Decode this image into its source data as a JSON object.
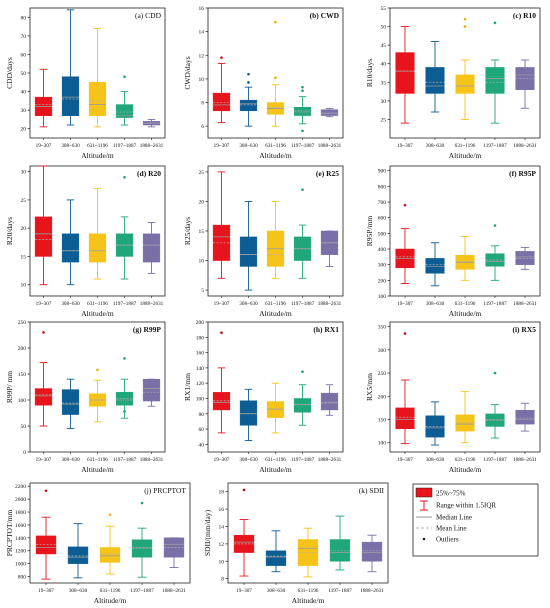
{
  "colors": {
    "box_fills": [
      "#e8141b",
      "#0b5d94",
      "#f6c319",
      "#1fa67a",
      "#7b6fa8"
    ],
    "whisker_colors": [
      "#e8141b",
      "#0b5d94",
      "#f6c319",
      "#1fa67a",
      "#7b6fa8"
    ],
    "outlier_colors": [
      "#c0101a",
      "#0b5d94",
      "#e3b10b",
      "#19a37a",
      "#6a5d9b"
    ],
    "median_line": "#9a9a9a",
    "mean_line": "#b0b0b0"
  },
  "legend": {
    "box_label": "25%~75%",
    "whisker_label": "Range within 1.5IQR",
    "median_label": "Median Line",
    "mean_label": "Mean Line",
    "outlier_label": "Outliers"
  },
  "chart_data": [
    {
      "type": "box",
      "panel_label": "(a)  CDD",
      "xlabel": "Altitude/m",
      "ylabel": "CDD/days",
      "ylim": [
        15,
        85
      ],
      "yticks": [
        20,
        30,
        40,
        50,
        60,
        70,
        80
      ],
      "categories": [
        "19~307",
        "308~630",
        "631~1196",
        "1197~1887",
        "1888~2631"
      ],
      "boxes": [
        {
          "whisker_low": 21,
          "q1": 27,
          "median": 32,
          "mean": 33,
          "q3": 37,
          "whisker_high": 52,
          "outliers": []
        },
        {
          "whisker_low": 22,
          "q1": 27,
          "median": 37,
          "mean": 36,
          "q3": 48,
          "whisker_high": 84,
          "outliers": []
        },
        {
          "whisker_low": 21,
          "q1": 27,
          "median": 33,
          "mean": 35,
          "q3": 45,
          "whisker_high": 74,
          "outliers": []
        },
        {
          "whisker_low": 22,
          "q1": 26,
          "median": 27,
          "mean": 29,
          "q3": 33,
          "whisker_high": 40,
          "outliers": [
            48
          ]
        },
        {
          "whisker_low": 21,
          "q1": 22,
          "median": 23,
          "mean": 23,
          "q3": 24,
          "whisker_high": 25,
          "outliers": []
        }
      ]
    },
    {
      "type": "box",
      "panel_label": "(b) CWD",
      "xlabel": "Altitude/m",
      "ylabel": "CWD/days",
      "ylim": [
        5,
        16
      ],
      "yticks": [
        6,
        8,
        10,
        12,
        14,
        16
      ],
      "categories": [
        "19~307",
        "308~630",
        "631~1196",
        "1197~1887",
        "1888~2631"
      ],
      "boxes": [
        {
          "whisker_low": 6.3,
          "q1": 7.3,
          "median": 7.8,
          "mean": 8.0,
          "q3": 8.8,
          "whisker_high": 11.3,
          "outliers": [
            11.8
          ]
        },
        {
          "whisker_low": 6.0,
          "q1": 7.3,
          "median": 7.9,
          "mean": 7.8,
          "q3": 8.2,
          "whisker_high": 9.3,
          "outliers": [
            10.4,
            9.7
          ]
        },
        {
          "whisker_low": 6.0,
          "q1": 7.0,
          "median": 7.5,
          "mean": 7.6,
          "q3": 8.0,
          "whisker_high": 9.5,
          "outliers": [
            14.8,
            10.1
          ]
        },
        {
          "whisker_low": 6.2,
          "q1": 6.9,
          "median": 7.2,
          "mean": 7.3,
          "q3": 7.6,
          "whisker_high": 8.5,
          "outliers": [
            9.3,
            9.0,
            5.6
          ]
        },
        {
          "whisker_low": 6.8,
          "q1": 6.9,
          "median": 7.1,
          "mean": 7.1,
          "q3": 7.4,
          "whisker_high": 7.5,
          "outliers": []
        }
      ]
    },
    {
      "type": "box",
      "panel_label": "(c) R10",
      "xlabel": "Altitude/m",
      "ylabel": "R10/days",
      "ylim": [
        20,
        55
      ],
      "yticks": [
        25,
        30,
        35,
        40,
        45,
        50,
        55
      ],
      "categories": [
        "19~307",
        "308~630",
        "631~1196",
        "1197~1887",
        "1888~2631"
      ],
      "boxes": [
        {
          "whisker_low": 24,
          "q1": 32,
          "median": 38,
          "mean": 38,
          "q3": 43,
          "whisker_high": 50,
          "outliers": []
        },
        {
          "whisker_low": 27,
          "q1": 32,
          "median": 34,
          "mean": 35,
          "q3": 39,
          "whisker_high": 46,
          "outliers": []
        },
        {
          "whisker_low": 25,
          "q1": 32,
          "median": 34,
          "mean": 34,
          "q3": 37,
          "whisker_high": 41,
          "outliers": [
            52,
            50
          ]
        },
        {
          "whisker_low": 24,
          "q1": 32,
          "median": 36,
          "mean": 35,
          "q3": 39,
          "whisker_high": 41,
          "outliers": [
            51
          ]
        },
        {
          "whisker_low": 28,
          "q1": 33,
          "median": 37,
          "mean": 36,
          "q3": 39,
          "whisker_high": 41,
          "outliers": []
        }
      ]
    },
    {
      "type": "box",
      "panel_label": "(d) R20",
      "xlabel": "Altitude/m",
      "ylabel": "R20/days",
      "ylim": [
        8,
        31
      ],
      "yticks": [
        10,
        15,
        20,
        25,
        30
      ],
      "categories": [
        "19~307",
        "308~630",
        "631~1196",
        "1197~1887",
        "1888~2631"
      ],
      "boxes": [
        {
          "whisker_low": 10,
          "q1": 15,
          "median": 19,
          "mean": 18,
          "q3": 22,
          "whisker_high": 31,
          "outliers": []
        },
        {
          "whisker_low": 10,
          "q1": 14,
          "median": 16,
          "mean": 16,
          "q3": 19,
          "whisker_high": 25,
          "outliers": []
        },
        {
          "whisker_low": 11,
          "q1": 14,
          "median": 16,
          "mean": 16,
          "q3": 19,
          "whisker_high": 27,
          "outliers": []
        },
        {
          "whisker_low": 11,
          "q1": 15,
          "median": 17,
          "mean": 17,
          "q3": 19,
          "whisker_high": 22,
          "outliers": [
            29
          ]
        },
        {
          "whisker_low": 12,
          "q1": 14,
          "median": 17,
          "mean": 17,
          "q3": 19,
          "whisker_high": 21,
          "outliers": []
        }
      ]
    },
    {
      "type": "box",
      "panel_label": "(e) R25",
      "xlabel": "Altitude/m",
      "ylabel": "R25/days",
      "ylim": [
        4,
        26
      ],
      "yticks": [
        5,
        10,
        15,
        20,
        25
      ],
      "categories": [
        "19~307",
        "308~630",
        "631~1196",
        "1197~1887",
        "1888~2631"
      ],
      "boxes": [
        {
          "whisker_low": 7,
          "q1": 10,
          "median": 14,
          "mean": 13,
          "q3": 16,
          "whisker_high": 25,
          "outliers": []
        },
        {
          "whisker_low": 5,
          "q1": 9,
          "median": 11,
          "mean": 11,
          "q3": 14,
          "whisker_high": 20,
          "outliers": []
        },
        {
          "whisker_low": 7,
          "q1": 9,
          "median": 12,
          "mean": 11,
          "q3": 15,
          "whisker_high": 20,
          "outliers": []
        },
        {
          "whisker_low": 7,
          "q1": 10,
          "median": 12,
          "mean": 12,
          "q3": 14,
          "whisker_high": 16,
          "outliers": [
            22
          ]
        },
        {
          "whisker_low": 9,
          "q1": 11,
          "median": 13,
          "mean": 13,
          "q3": 15,
          "whisker_high": 15,
          "outliers": []
        }
      ]
    },
    {
      "type": "box",
      "panel_label": "(f) R95P",
      "xlabel": "Altitude/m",
      "ylabel": "R95P/mm",
      "ylim": [
        100,
        930
      ],
      "yticks": [
        100,
        200,
        300,
        400,
        500,
        600,
        700,
        800,
        900
      ],
      "categories": [
        "19~307",
        "308~630",
        "631~1196",
        "1197~1887",
        "1888~2631"
      ],
      "boxes": [
        {
          "whisker_low": 180,
          "q1": 280,
          "median": 340,
          "mean": 350,
          "q3": 400,
          "whisker_high": 530,
          "outliers": [
            680
          ]
        },
        {
          "whisker_low": 165,
          "q1": 245,
          "median": 290,
          "mean": 300,
          "q3": 340,
          "whisker_high": 440,
          "outliers": []
        },
        {
          "whisker_low": 200,
          "q1": 270,
          "median": 315,
          "mean": 320,
          "q3": 360,
          "whisker_high": 480,
          "outliers": []
        },
        {
          "whisker_low": 200,
          "q1": 290,
          "median": 320,
          "mean": 330,
          "q3": 370,
          "whisker_high": 420,
          "outliers": [
            550
          ]
        },
        {
          "whisker_low": 270,
          "q1": 300,
          "median": 350,
          "mean": 340,
          "q3": 385,
          "whisker_high": 410,
          "outliers": []
        }
      ]
    },
    {
      "type": "box",
      "panel_label": "(g) R99P",
      "xlabel": "Altitude/m",
      "ylabel": "R99P/ mm",
      "ylim": [
        0,
        250
      ],
      "yticks": [
        0,
        50,
        100,
        150,
        200,
        250
      ],
      "categories": [
        "19~307",
        "308~630",
        "631~1196",
        "1197~1887",
        "1888~2631"
      ],
      "boxes": [
        {
          "whisker_low": 50,
          "q1": 90,
          "median": 108,
          "mean": 110,
          "q3": 122,
          "whisker_high": 172,
          "outliers": [
            230
          ]
        },
        {
          "whisker_low": 45,
          "q1": 72,
          "median": 92,
          "mean": 94,
          "q3": 120,
          "whisker_high": 140,
          "outliers": []
        },
        {
          "whisker_low": 58,
          "q1": 88,
          "median": 100,
          "mean": 100,
          "q3": 112,
          "whisker_high": 138,
          "outliers": [
            158
          ]
        },
        {
          "whisker_low": 65,
          "q1": 90,
          "median": 100,
          "mean": 103,
          "q3": 115,
          "whisker_high": 140,
          "outliers": [
            180,
            78
          ]
        },
        {
          "whisker_low": 88,
          "q1": 98,
          "median": 122,
          "mean": 115,
          "q3": 140,
          "whisker_high": 140,
          "outliers": []
        }
      ]
    },
    {
      "type": "box",
      "panel_label": "(h) RX1",
      "xlabel": "Altitude/m",
      "ylabel": "RX1/mm",
      "ylim": [
        30,
        200
      ],
      "yticks": [
        40,
        60,
        80,
        100,
        120,
        140,
        160,
        180,
        200
      ],
      "categories": [
        "19~307",
        "308~630",
        "631~1196",
        "1197~1887",
        "1888~2631"
      ],
      "boxes": [
        {
          "whisker_low": 55,
          "q1": 85,
          "median": 95,
          "mean": 97,
          "q3": 108,
          "whisker_high": 140,
          "outliers": [
            186
          ]
        },
        {
          "whisker_low": 45,
          "q1": 65,
          "median": 80,
          "mean": 80,
          "q3": 97,
          "whisker_high": 112,
          "outliers": []
        },
        {
          "whisker_low": 55,
          "q1": 75,
          "median": 86,
          "mean": 86,
          "q3": 96,
          "whisker_high": 120,
          "outliers": []
        },
        {
          "whisker_low": 65,
          "q1": 82,
          "median": 92,
          "mean": 92,
          "q3": 100,
          "whisker_high": 118,
          "outliers": [
            135
          ]
        },
        {
          "whisker_low": 78,
          "q1": 85,
          "median": 95,
          "mean": 94,
          "q3": 107,
          "whisker_high": 118,
          "outliers": []
        }
      ]
    },
    {
      "type": "box",
      "panel_label": "(i) RX5",
      "xlabel": "Altitude/m",
      "ylabel": "RX5/mm",
      "ylim": [
        80,
        360
      ],
      "yticks": [
        100,
        150,
        200,
        250,
        300,
        350
      ],
      "categories": [
        "19~307",
        "308~630",
        "631~1196",
        "1197~1887",
        "1888~2631"
      ],
      "boxes": [
        {
          "whisker_low": 98,
          "q1": 130,
          "median": 150,
          "mean": 155,
          "q3": 175,
          "whisker_high": 235,
          "outliers": [
            335
          ]
        },
        {
          "whisker_low": 95,
          "q1": 112,
          "median": 132,
          "mean": 135,
          "q3": 158,
          "whisker_high": 188,
          "outliers": []
        },
        {
          "whisker_low": 100,
          "q1": 125,
          "median": 140,
          "mean": 143,
          "q3": 160,
          "whisker_high": 210,
          "outliers": []
        },
        {
          "whisker_low": 110,
          "q1": 135,
          "median": 150,
          "mean": 148,
          "q3": 162,
          "whisker_high": 182,
          "outliers": [
            250
          ]
        },
        {
          "whisker_low": 125,
          "q1": 140,
          "median": 150,
          "mean": 153,
          "q3": 170,
          "whisker_high": 185,
          "outliers": []
        }
      ]
    },
    {
      "type": "box",
      "panel_label": "(j) PRCPTOT",
      "xlabel": "Altitude/m",
      "ylabel": "PRCPTOT/mm",
      "ylim": [
        700,
        2250
      ],
      "yticks": [
        800,
        1000,
        1200,
        1400,
        1600,
        1800,
        2000,
        2200
      ],
      "categories": [
        "19~307",
        "308~630",
        "631~1196",
        "1197~1887",
        "1888~2631"
      ],
      "boxes": [
        {
          "whisker_low": 760,
          "q1": 1150,
          "median": 1250,
          "mean": 1300,
          "q3": 1430,
          "whisker_high": 1720,
          "outliers": [
            2130
          ]
        },
        {
          "whisker_low": 780,
          "q1": 1000,
          "median": 1100,
          "mean": 1120,
          "q3": 1260,
          "whisker_high": 1620,
          "outliers": []
        },
        {
          "whisker_low": 840,
          "q1": 1020,
          "median": 1120,
          "mean": 1150,
          "q3": 1250,
          "whisker_high": 1580,
          "outliers": [
            1760
          ]
        },
        {
          "whisker_low": 790,
          "q1": 1100,
          "median": 1250,
          "mean": 1240,
          "q3": 1370,
          "whisker_high": 1550,
          "outliers": [
            1940
          ]
        },
        {
          "whisker_low": 940,
          "q1": 1100,
          "median": 1300,
          "mean": 1250,
          "q3": 1400,
          "whisker_high": 1400,
          "outliers": []
        }
      ]
    },
    {
      "type": "box",
      "panel_label": "(k) SDII",
      "xlabel": "Altitude/m",
      "ylabel": "SDII/(mm/day)",
      "ylim": [
        7.5,
        19
      ],
      "yticks": [
        8,
        10,
        12,
        14,
        16,
        18
      ],
      "categories": [
        "19~307",
        "308~630",
        "631~1196",
        "1197~1887",
        "1888~2631"
      ],
      "boxes": [
        {
          "whisker_low": 8.3,
          "q1": 11.0,
          "median": 12.2,
          "mean": 12.0,
          "q3": 13.0,
          "whisker_high": 14.8,
          "outliers": [
            18.2
          ]
        },
        {
          "whisker_low": 8.8,
          "q1": 9.5,
          "median": 10.5,
          "mean": 10.6,
          "q3": 11.2,
          "whisker_high": 13.5,
          "outliers": []
        },
        {
          "whisker_low": 8.2,
          "q1": 9.5,
          "median": 11.5,
          "mean": 11.0,
          "q3": 12.5,
          "whisker_high": 13.8,
          "outliers": []
        },
        {
          "whisker_low": 9.0,
          "q1": 10.0,
          "median": 11.0,
          "mean": 11.2,
          "q3": 12.5,
          "whisker_high": 15.2,
          "outliers": []
        },
        {
          "whisker_low": 8.8,
          "q1": 10.0,
          "median": 11.0,
          "mean": 11.2,
          "q3": 12.2,
          "whisker_high": 13.0,
          "outliers": []
        }
      ]
    }
  ]
}
